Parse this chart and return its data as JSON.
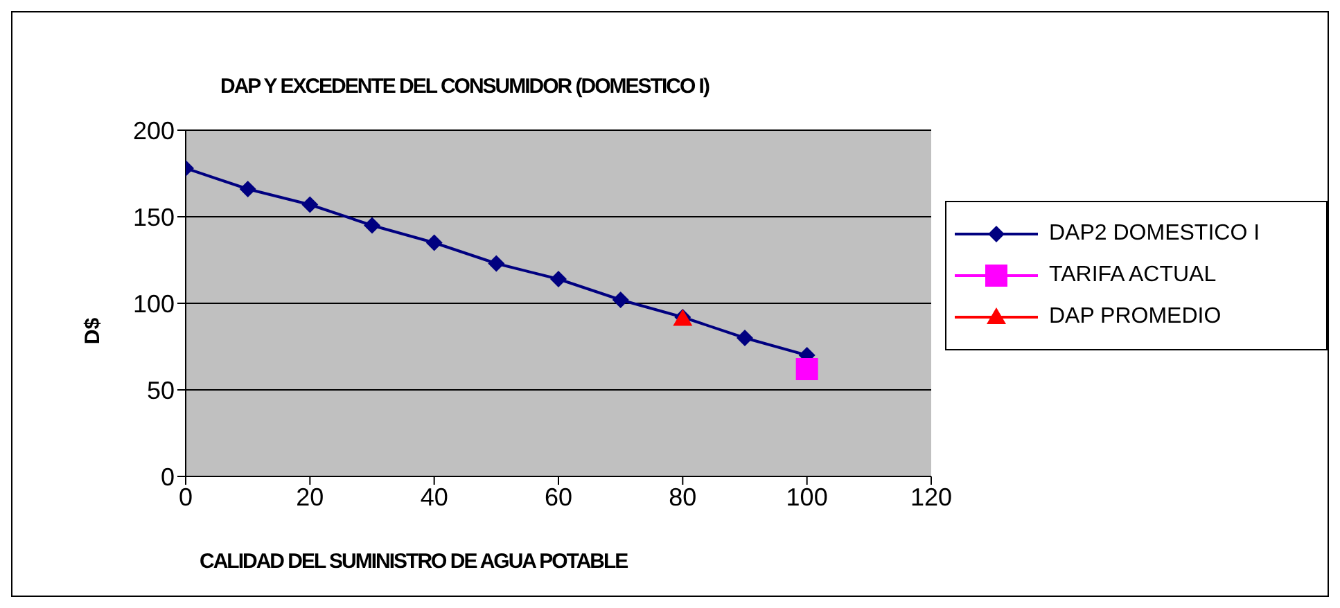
{
  "chart_data": {
    "type": "line",
    "title": "DAP Y EXCEDENTE DEL CONSUMIDOR (DOMESTICO I)",
    "xlabel": "CALIDAD DEL SUMINISTRO DE AGUA POTABLE",
    "ylabel": "D$",
    "series": [
      {
        "name": "DAP2 DOMESTICO I",
        "color": "#000080",
        "marker": "diamond",
        "x": [
          0,
          10,
          20,
          30,
          40,
          50,
          60,
          70,
          80,
          90,
          100
        ],
        "values": [
          178,
          166,
          157,
          145,
          135,
          123,
          114,
          102,
          92,
          80,
          70
        ]
      },
      {
        "name": "TARIFA ACTUAL",
        "color": "#ff00ff",
        "marker": "square",
        "x": [
          100
        ],
        "values": [
          62
        ]
      },
      {
        "name": "DAP PROMEDIO",
        "color": "#ff0000",
        "marker": "triangle",
        "x": [
          80
        ],
        "values": [
          91
        ]
      }
    ],
    "xlim": [
      0,
      120
    ],
    "xticks": [
      0,
      20,
      40,
      60,
      80,
      100,
      120
    ],
    "ylim": [
      0,
      200
    ],
    "yticks": [
      0,
      50,
      100,
      150,
      200
    ],
    "grid": "y",
    "legend": "right"
  }
}
